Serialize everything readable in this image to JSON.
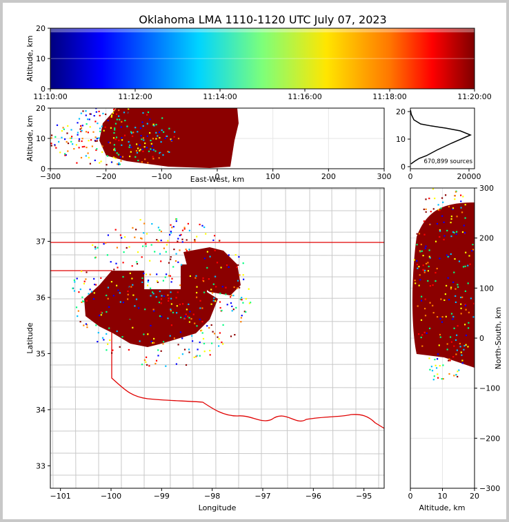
{
  "chart_data": [
    {
      "type": "scatter",
      "panel": "time-altitude",
      "title": "Oklahoma LMA 1110-1120 UTC July 07, 2023",
      "ylabel": "Altitude, km",
      "ylim": [
        0,
        20
      ],
      "yticks": [
        "0",
        "10",
        "20"
      ],
      "xticks": [
        "11:10:00",
        "11:12:00",
        "11:14:00",
        "11:16:00",
        "11:18:00",
        "11:20:00"
      ],
      "colormap": "jet (time)"
    },
    {
      "type": "scatter",
      "panel": "east-west-altitude",
      "xlabel": "East-West, km",
      "ylabel": "Altitude, km",
      "xlim": [
        -300,
        300
      ],
      "ylim": [
        0,
        20
      ],
      "xticks": [
        "−300",
        "−200",
        "−100",
        "0",
        "100",
        "200",
        "300"
      ],
      "yticks": [
        "0",
        "10",
        "20"
      ],
      "grid": true
    },
    {
      "type": "line",
      "panel": "altitude-histogram",
      "annotation": "670,899 sources",
      "xticks": [
        "0",
        "20000"
      ],
      "yticks": [
        "0",
        "10",
        "20"
      ],
      "x": [
        200,
        1500,
        3000,
        5500,
        9000,
        14000,
        20500,
        17000,
        12000,
        7000,
        3500,
        1200,
        300,
        50
      ],
      "y": [
        1,
        2,
        3,
        4,
        6,
        8.5,
        11.5,
        13,
        14,
        14.8,
        15.5,
        17,
        19,
        20.5
      ]
    },
    {
      "type": "scatter",
      "panel": "plan-view-map",
      "xlabel": "Longitude",
      "ylabel": "Latitude",
      "xlim": [
        -101.2,
        -94.6
      ],
      "ylim": [
        32.6,
        37.95
      ],
      "xticks": [
        "−101",
        "−100",
        "−99",
        "−98",
        "−97",
        "−96",
        "−95"
      ],
      "yticks": [
        "33",
        "34",
        "35",
        "36",
        "37"
      ]
    },
    {
      "type": "scatter",
      "panel": "north-south-altitude",
      "xlabel": "Altitude, km",
      "ylabel": "North-South, km",
      "xlim": [
        0,
        20
      ],
      "ylim": [
        -300,
        300
      ],
      "xticks": [
        "0",
        "10",
        "20"
      ],
      "yticks": [
        "−300",
        "−200",
        "−100",
        "0",
        "100",
        "200",
        "300"
      ],
      "grid": true
    }
  ]
}
